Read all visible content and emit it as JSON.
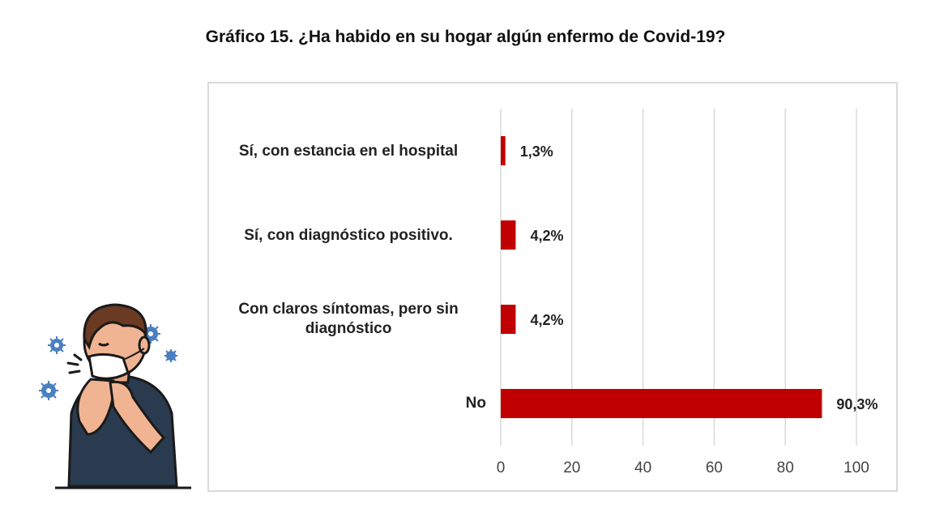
{
  "chart_data": {
    "type": "bar",
    "orientation": "horizontal",
    "title": "Gráfico 15. ¿Ha habido en su hogar algún enfermo de Covid-19?",
    "categories": [
      "Sí, con estancia en el hospital",
      "Sí, con diagnóstico positivo.",
      "Con claros síntomas, pero sin diagnóstico",
      "No"
    ],
    "values": [
      1.3,
      4.2,
      4.2,
      90.3
    ],
    "value_labels": [
      "1,3%",
      "4,2%",
      "4,2%",
      "90,3%"
    ],
    "xlim": [
      0,
      100
    ],
    "x_ticks": [
      0,
      20,
      40,
      60,
      80,
      100
    ],
    "x_tick_labels": [
      "0",
      "20",
      "40",
      "60",
      "80",
      "100"
    ],
    "grid": "vertical",
    "bar_color": "#c00000",
    "grid_color": "#d9d9d9"
  }
}
